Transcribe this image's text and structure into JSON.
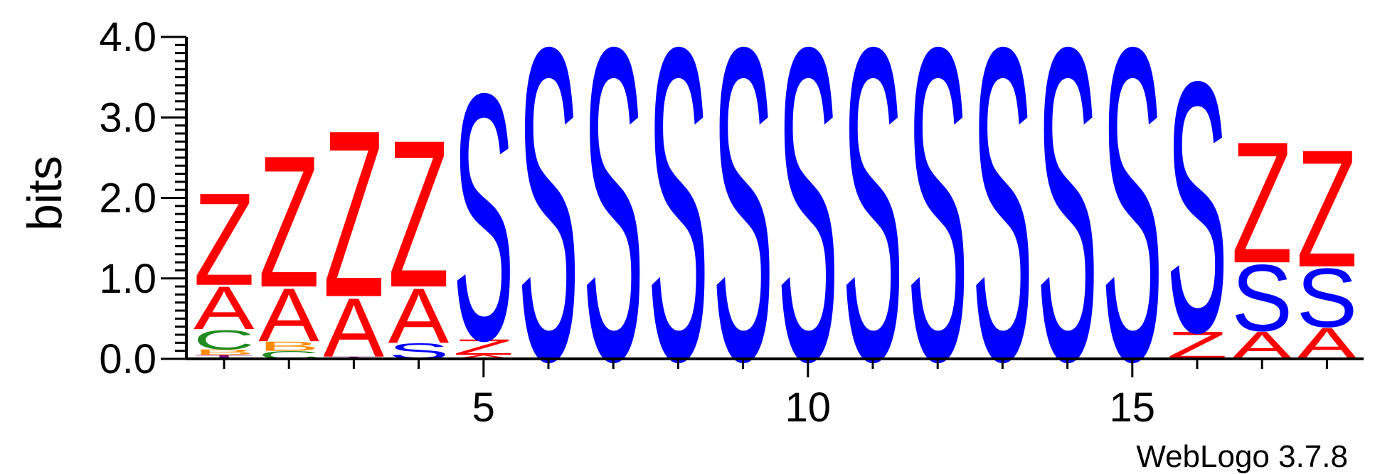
{
  "chart_data": {
    "type": "sequence-logo",
    "ylabel": "bits",
    "xlabel": "",
    "ylim": [
      0,
      4.0
    ],
    "xlim": [
      1,
      18
    ],
    "y_ticks": [
      "0.0",
      "1.0",
      "2.0",
      "3.0",
      "4.0"
    ],
    "x_ticks": [
      "5",
      "10",
      "15"
    ],
    "credit": "WebLogo 3.7.8",
    "colors": {
      "Z": "#ff0000",
      "A": "#ff0000",
      "S": "#0000ff",
      "C": "#228b22",
      "B": "#ff8c00",
      "T": "#800080"
    },
    "positions": [
      {
        "pos": 1,
        "letters": [
          {
            "l": "T",
            "h": 0.05
          },
          {
            "l": "B",
            "h": 0.07
          },
          {
            "l": "C",
            "h": 0.25
          },
          {
            "l": "A",
            "h": 0.55
          },
          {
            "l": "Z",
            "h": 1.18
          }
        ]
      },
      {
        "pos": 2,
        "letters": [
          {
            "l": "C",
            "h": 0.1
          },
          {
            "l": "B",
            "h": 0.12
          },
          {
            "l": "A",
            "h": 0.68
          },
          {
            "l": "Z",
            "h": 1.68
          }
        ]
      },
      {
        "pos": 3,
        "letters": [
          {
            "l": "T",
            "h": 0.03
          },
          {
            "l": "A",
            "h": 0.75
          },
          {
            "l": "Z",
            "h": 2.13
          }
        ]
      },
      {
        "pos": 4,
        "letters": [
          {
            "l": "S",
            "h": 0.2
          },
          {
            "l": "A",
            "h": 0.7
          },
          {
            "l": "Z",
            "h": 1.88
          }
        ]
      },
      {
        "pos": 5,
        "letters": [
          {
            "l": "A",
            "h": 0.05
          },
          {
            "l": "Z",
            "h": 0.2
          },
          {
            "l": "S",
            "h": 3.15
          }
        ]
      },
      {
        "pos": 6,
        "letters": [
          {
            "l": "S",
            "h": 4.0
          }
        ]
      },
      {
        "pos": 7,
        "letters": [
          {
            "l": "S",
            "h": 4.0
          }
        ]
      },
      {
        "pos": 8,
        "letters": [
          {
            "l": "S",
            "h": 4.0
          }
        ]
      },
      {
        "pos": 9,
        "letters": [
          {
            "l": "S",
            "h": 4.0
          }
        ]
      },
      {
        "pos": 10,
        "letters": [
          {
            "l": "S",
            "h": 4.0
          }
        ]
      },
      {
        "pos": 11,
        "letters": [
          {
            "l": "S",
            "h": 4.0
          }
        ]
      },
      {
        "pos": 12,
        "letters": [
          {
            "l": "S",
            "h": 4.0
          }
        ]
      },
      {
        "pos": 13,
        "letters": [
          {
            "l": "S",
            "h": 4.0
          }
        ]
      },
      {
        "pos": 14,
        "letters": [
          {
            "l": "S",
            "h": 4.0
          }
        ]
      },
      {
        "pos": 15,
        "letters": [
          {
            "l": "S",
            "h": 4.0
          }
        ]
      },
      {
        "pos": 16,
        "letters": [
          {
            "l": "Z",
            "h": 0.35
          },
          {
            "l": "S",
            "h": 3.2
          }
        ]
      },
      {
        "pos": 17,
        "letters": [
          {
            "l": "A",
            "h": 0.35
          },
          {
            "l": "S",
            "h": 0.85
          },
          {
            "l": "Z",
            "h": 1.55
          }
        ]
      },
      {
        "pos": 18,
        "letters": [
          {
            "l": "A",
            "h": 0.4
          },
          {
            "l": "S",
            "h": 0.75
          },
          {
            "l": "Z",
            "h": 1.5
          }
        ]
      }
    ]
  }
}
